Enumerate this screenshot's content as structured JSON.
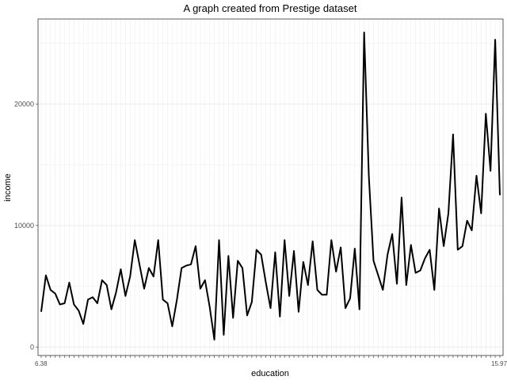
{
  "chart_data": {
    "type": "line",
    "title": "A graph created from Prestige dataset",
    "xlabel": "education",
    "ylabel": "income",
    "ylim": [
      -700,
      27000
    ],
    "y_ticks": [
      0,
      10000,
      20000
    ],
    "y_tick_labels": [
      "0",
      "10000",
      "20000"
    ],
    "x_first_tick_label": "6.38",
    "x_last_tick_label": "15.97",
    "grid": true,
    "line_color": "#000000",
    "values": [
      2900,
      5900,
      4700,
      4400,
      3500,
      3600,
      5300,
      3500,
      3000,
      1900,
      3900,
      4100,
      3600,
      5500,
      5100,
      3100,
      4500,
      6400,
      4200,
      5800,
      8800,
      6800,
      4800,
      6500,
      5800,
      8800,
      3900,
      3600,
      1700,
      3900,
      6500,
      6700,
      6800,
      8300,
      4800,
      5500,
      3300,
      600,
      8800,
      1000,
      7500,
      2400,
      7100,
      6500,
      2600,
      3700,
      8000,
      7600,
      5300,
      3200,
      7800,
      2500,
      8800,
      4200,
      7900,
      2900,
      7000,
      5100,
      8700,
      4700,
      4300,
      4300,
      8800,
      6200,
      8200,
      3200,
      4000,
      8100,
      3100,
      25900,
      14100,
      7100,
      5900,
      4700,
      7600,
      9300,
      5200,
      12300,
      5100,
      8400,
      6100,
      6300,
      7300,
      8000,
      4700,
      11400,
      8300,
      11000,
      17500,
      8000,
      8300,
      10400,
      9600,
      14100,
      11000,
      19200,
      14500,
      25300,
      12500
    ]
  }
}
